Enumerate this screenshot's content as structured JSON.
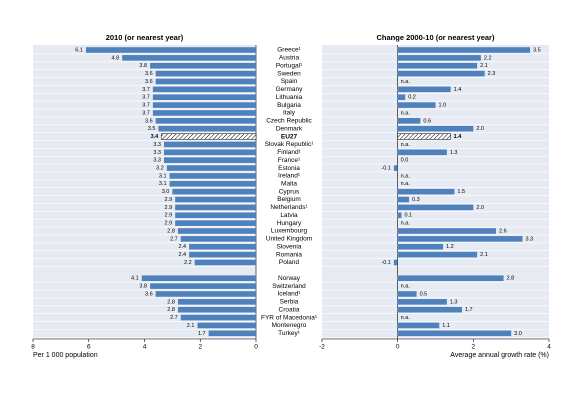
{
  "chart_data": [
    {
      "type": "bar",
      "orientation": "horizontal",
      "title": "2010 (or nearest year)",
      "xlabel": "Per 1 000 population",
      "categories": [
        "Greece¹",
        "Austria",
        "Portugal¹",
        "Sweden",
        "Spain",
        "Germany",
        "Lithuania",
        "Bulgaria",
        "Italy",
        "Czech Republic",
        "Denmark",
        "EU27",
        "Slovak Republic¹",
        "Finland¹",
        "France¹",
        "Estonia",
        "Ireland¹",
        "Malta",
        "Cyprus",
        "Belgium",
        "Netherlands¹",
        "Latvia",
        "Hungary",
        "Luxembourg",
        "United Kingdom",
        "Slovenia",
        "Romania",
        "Poland",
        "Norway",
        "Switzerland",
        "Iceland¹",
        "Serbia",
        "Croatia",
        "FYR of Macedonia¹",
        "Montenegro",
        "Turkey¹"
      ],
      "values": [
        6.1,
        4.8,
        3.8,
        3.6,
        3.6,
        3.7,
        3.7,
        3.7,
        3.7,
        3.6,
        3.5,
        3.4,
        3.3,
        3.3,
        3.3,
        3.2,
        3.1,
        3.1,
        3.0,
        2.9,
        2.9,
        2.9,
        2.9,
        2.8,
        2.7,
        2.4,
        2.4,
        2.2,
        4.1,
        3.8,
        3.6,
        2.8,
        2.8,
        2.7,
        2.1,
        1.7
      ],
      "value_labels": [
        "6.1",
        "4.8",
        "3.8",
        "3.6",
        "3.6",
        "3.7",
        "3.7",
        "3.7",
        "3.7",
        "3.6",
        "3.5",
        "3.4",
        "3.3",
        "3.3",
        "3.3",
        "3.2",
        "3.1",
        "3.1",
        "3.0",
        "2.9",
        "2.9",
        "2.9",
        "2.9",
        "2.8",
        "2.7",
        "2.4",
        "2.4",
        "2.2",
        "4.1",
        "3.8",
        "3.6",
        "2.8",
        "2.8",
        "2.7",
        "2.1",
        "1.7"
      ],
      "color": "#4f81bd",
      "highlight": 11,
      "xlim": [
        8,
        0
      ],
      "xticks": [
        8,
        6,
        4,
        2,
        0
      ]
    },
    {
      "type": "bar",
      "orientation": "horizontal",
      "title": "Change 2000-10 (or nearest year)",
      "xlabel": "Average annual growth rate (%)",
      "values": [
        3.5,
        2.2,
        2.1,
        2.3,
        null,
        1.4,
        0.2,
        1.0,
        null,
        0.6,
        2.0,
        1.4,
        null,
        1.3,
        0.0,
        -0.1,
        null,
        null,
        1.5,
        0.3,
        2.0,
        0.1,
        null,
        2.6,
        3.3,
        1.2,
        2.1,
        -0.1,
        2.8,
        null,
        0.5,
        1.3,
        1.7,
        null,
        1.1,
        3.0
      ],
      "value_labels": [
        "3.5",
        "2.2",
        "2.1",
        "2.3",
        "n.a.",
        "1.4",
        "0.2",
        "1.0",
        "n.a.",
        "0.6",
        "2.0",
        "1.4",
        "n.a.",
        "1.3",
        "0.0",
        "-0.1",
        "n.a.",
        "n.a.",
        "1.5",
        "0.3",
        "2.0",
        "0.1",
        "n.a.",
        "2.6",
        "3.3",
        "1.2",
        "2.1",
        "-0.1",
        "2.8",
        "n.a.",
        "0.5",
        "1.3",
        "1.7",
        "n.a.",
        "1.1",
        "3.0"
      ],
      "color": "#4f81bd",
      "highlight": 11,
      "xlim": [
        -2,
        4
      ],
      "xticks": [
        -2,
        0,
        2,
        4
      ]
    }
  ]
}
